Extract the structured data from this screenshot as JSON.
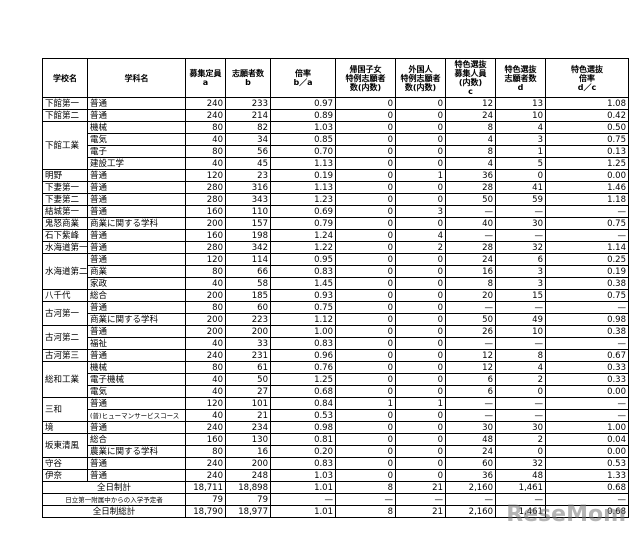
{
  "table": {
    "header": [
      "学校名",
      "学科名",
      "募集定員\na",
      "志願者数\nb",
      "倍率\nb／a",
      "帰国子女\n特例志願者\n数(内数)",
      "外国人\n特例志願者\n数(内数)",
      "特色選抜\n募集人員\n(内数)\nc",
      "特色選抜\n志願者数\nd",
      "特色選抜\n倍率\nd／c"
    ],
    "groups": [
      {
        "school": "下館第一",
        "rows": [
          [
            "普通",
            "240",
            "233",
            "0.97",
            "0",
            "0",
            "12",
            "13",
            "1.08"
          ]
        ]
      },
      {
        "school": "下館第二",
        "rows": [
          [
            "普通",
            "240",
            "214",
            "0.89",
            "0",
            "0",
            "24",
            "10",
            "0.42"
          ]
        ]
      },
      {
        "school": "下館工業",
        "rows": [
          [
            "機械",
            "80",
            "82",
            "1.03",
            "0",
            "0",
            "8",
            "4",
            "0.50"
          ],
          [
            "電気",
            "40",
            "34",
            "0.85",
            "0",
            "0",
            "4",
            "3",
            "0.75"
          ],
          [
            "電子",
            "80",
            "56",
            "0.70",
            "0",
            "0",
            "8",
            "1",
            "0.13"
          ],
          [
            "建設工学",
            "40",
            "45",
            "1.13",
            "0",
            "0",
            "4",
            "5",
            "1.25"
          ]
        ]
      },
      {
        "school": "明野",
        "rows": [
          [
            "普通",
            "120",
            "23",
            "0.19",
            "0",
            "1",
            "36",
            "0",
            "0.00"
          ]
        ]
      },
      {
        "school": "下妻第一",
        "rows": [
          [
            "普通",
            "280",
            "316",
            "1.13",
            "0",
            "0",
            "28",
            "41",
            "1.46"
          ]
        ]
      },
      {
        "school": "下妻第二",
        "rows": [
          [
            "普通",
            "280",
            "343",
            "1.23",
            "0",
            "0",
            "50",
            "59",
            "1.18"
          ]
        ]
      },
      {
        "school": "結城第一",
        "rows": [
          [
            "普通",
            "160",
            "110",
            "0.69",
            "0",
            "3",
            "—",
            "—",
            "—"
          ]
        ]
      },
      {
        "school": "鬼怒商業",
        "rows": [
          [
            "商業に関する学科",
            "200",
            "157",
            "0.79",
            "0",
            "0",
            "40",
            "30",
            "0.75"
          ]
        ]
      },
      {
        "school": "石下紫峰",
        "rows": [
          [
            "普通",
            "160",
            "198",
            "1.24",
            "0",
            "4",
            "—",
            "—",
            "—"
          ]
        ]
      },
      {
        "school": "水海道第一",
        "rows": [
          [
            "普通",
            "280",
            "342",
            "1.22",
            "0",
            "2",
            "28",
            "32",
            "1.14"
          ]
        ]
      },
      {
        "school": "水海道第二",
        "rows": [
          [
            "普通",
            "120",
            "114",
            "0.95",
            "0",
            "0",
            "24",
            "6",
            "0.25"
          ],
          [
            "商業",
            "80",
            "66",
            "0.83",
            "0",
            "0",
            "16",
            "3",
            "0.19"
          ],
          [
            "家政",
            "40",
            "58",
            "1.45",
            "0",
            "0",
            "8",
            "3",
            "0.38"
          ]
        ]
      },
      {
        "school": "八千代",
        "rows": [
          [
            "総合",
            "200",
            "185",
            "0.93",
            "0",
            "0",
            "20",
            "15",
            "0.75"
          ]
        ]
      },
      {
        "school": "古河第一",
        "rows": [
          [
            "普通",
            "80",
            "60",
            "0.75",
            "0",
            "0",
            "—",
            "—",
            "—"
          ],
          [
            "商業に関する学科",
            "200",
            "223",
            "1.12",
            "0",
            "0",
            "50",
            "49",
            "0.98"
          ]
        ]
      },
      {
        "school": "古河第二",
        "rows": [
          [
            "普通",
            "200",
            "200",
            "1.00",
            "0",
            "0",
            "26",
            "10",
            "0.38"
          ],
          [
            "福祉",
            "40",
            "33",
            "0.83",
            "0",
            "0",
            "—",
            "—",
            "—"
          ]
        ]
      },
      {
        "school": "古河第三",
        "rows": [
          [
            "普通",
            "240",
            "231",
            "0.96",
            "0",
            "0",
            "12",
            "8",
            "0.67"
          ]
        ]
      },
      {
        "school": "総和工業",
        "rows": [
          [
            "機械",
            "80",
            "61",
            "0.76",
            "0",
            "0",
            "12",
            "4",
            "0.33"
          ],
          [
            "電子機械",
            "40",
            "50",
            "1.25",
            "0",
            "0",
            "6",
            "2",
            "0.33"
          ],
          [
            "電気",
            "40",
            "27",
            "0.68",
            "0",
            "0",
            "6",
            "0",
            "0.00"
          ]
        ]
      },
      {
        "school": "三和",
        "rows": [
          [
            "普通",
            "120",
            "101",
            "0.84",
            "1",
            "1",
            "—",
            "—",
            "—"
          ],
          [
            "(普)ヒューマンサービスコース",
            "40",
            "21",
            "0.53",
            "0",
            "0",
            "—",
            "—",
            "—"
          ]
        ]
      },
      {
        "school": "境",
        "rows": [
          [
            "普通",
            "240",
            "234",
            "0.98",
            "0",
            "0",
            "30",
            "30",
            "1.00"
          ]
        ]
      },
      {
        "school": "坂東清風",
        "rows": [
          [
            "総合",
            "160",
            "130",
            "0.81",
            "0",
            "0",
            "48",
            "2",
            "0.04"
          ],
          [
            "農業に関する学科",
            "80",
            "16",
            "0.20",
            "0",
            "0",
            "24",
            "0",
            "0.00"
          ]
        ]
      },
      {
        "school": "守谷",
        "rows": [
          [
            "普通",
            "240",
            "200",
            "0.83",
            "0",
            "0",
            "60",
            "32",
            "0.53"
          ]
        ]
      },
      {
        "school": "伊奈",
        "rows": [
          [
            "普通",
            "240",
            "248",
            "1.03",
            "0",
            "0",
            "36",
            "48",
            "1.33"
          ]
        ]
      }
    ],
    "totals": [
      [
        "全日制計",
        "18,711",
        "18,898",
        "1.01",
        "8",
        "21",
        "2,160",
        "1,461",
        "0.68"
      ],
      [
        "日立第一附属中からの入学予定者",
        "79",
        "79",
        "—",
        "—",
        "—",
        "—",
        "—",
        "—"
      ],
      [
        "全日制総計",
        "18,790",
        "18,977",
        "1.01",
        "8",
        "21",
        "2,160",
        "1,461",
        "0.68"
      ]
    ]
  },
  "watermark": "ReseMom"
}
